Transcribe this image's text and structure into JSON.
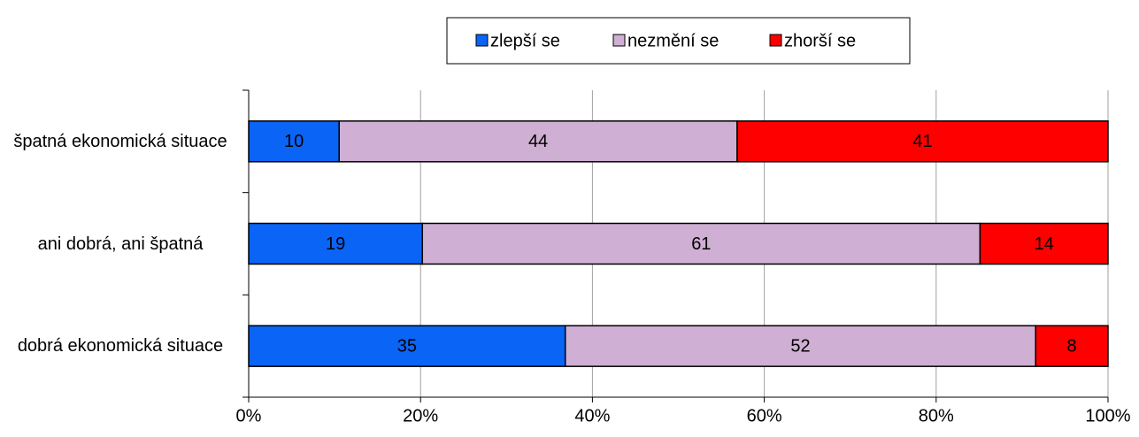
{
  "chart_data": {
    "type": "bar",
    "orientation": "horizontal",
    "stacked": "percent",
    "categories": [
      "špatná ekonomická situace",
      "ani dobrá, ani špatná",
      "dobrá ekonomická situace"
    ],
    "series": [
      {
        "name": "zlepší se",
        "color": "#0a64f5",
        "values": [
          10,
          19,
          35
        ]
      },
      {
        "name": "nezmění se",
        "color": "#cfafd3",
        "values": [
          44,
          61,
          52
        ]
      },
      {
        "name": "zhorší se",
        "color": "#ff0000",
        "values": [
          41,
          14,
          8
        ]
      }
    ],
    "xlim": [
      0,
      100
    ],
    "xticks": [
      {
        "value": 0,
        "label": "0%"
      },
      {
        "value": 20,
        "label": "20%"
      },
      {
        "value": 40,
        "label": "40%"
      },
      {
        "value": 60,
        "label": "60%"
      },
      {
        "value": 80,
        "label": "80%"
      },
      {
        "value": 100,
        "label": "100%"
      }
    ],
    "grid": true,
    "legend": "top"
  }
}
